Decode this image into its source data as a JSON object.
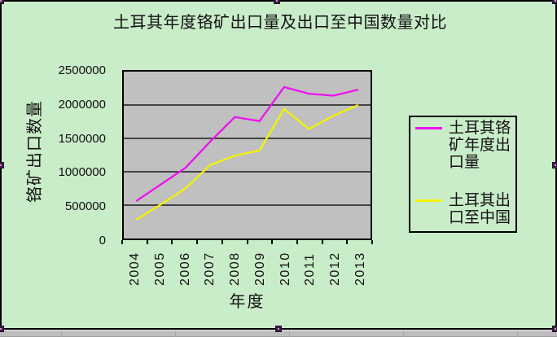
{
  "chart_data": {
    "type": "line",
    "title": "土耳其年度铬矿出口量及出口至中国数量对比",
    "xlabel": "年度",
    "ylabel": "铬矿出口数量",
    "categories": [
      "2004",
      "2005",
      "2006",
      "2007",
      "2008",
      "2009",
      "2010",
      "2011",
      "2012",
      "2013"
    ],
    "series": [
      {
        "name": "土耳其铬矿年度出口量",
        "legend_lines": [
          "土耳其铬",
          "矿年度出",
          "口量"
        ],
        "color": "#ee10ee",
        "values": [
          560000,
          810000,
          1060000,
          1450000,
          1820000,
          1760000,
          2270000,
          2170000,
          2140000,
          2230000
        ]
      },
      {
        "name": "土耳其出口至中国",
        "legend_lines": [
          "土耳其出",
          "口至中国"
        ],
        "color": "#f2f200",
        "values": [
          280000,
          510000,
          750000,
          1100000,
          1240000,
          1320000,
          1940000,
          1640000,
          1840000,
          2000000
        ]
      }
    ],
    "ylim": [
      0,
      2500000
    ],
    "ytick_step": 500000,
    "yticks": [
      "2500000",
      "2000000",
      "1500000",
      "1000000",
      "500000",
      "0"
    ],
    "grid": true,
    "legend_position": "right",
    "plot_bg": "#c0c0c0",
    "chart_bg": "#c9ecc9"
  }
}
